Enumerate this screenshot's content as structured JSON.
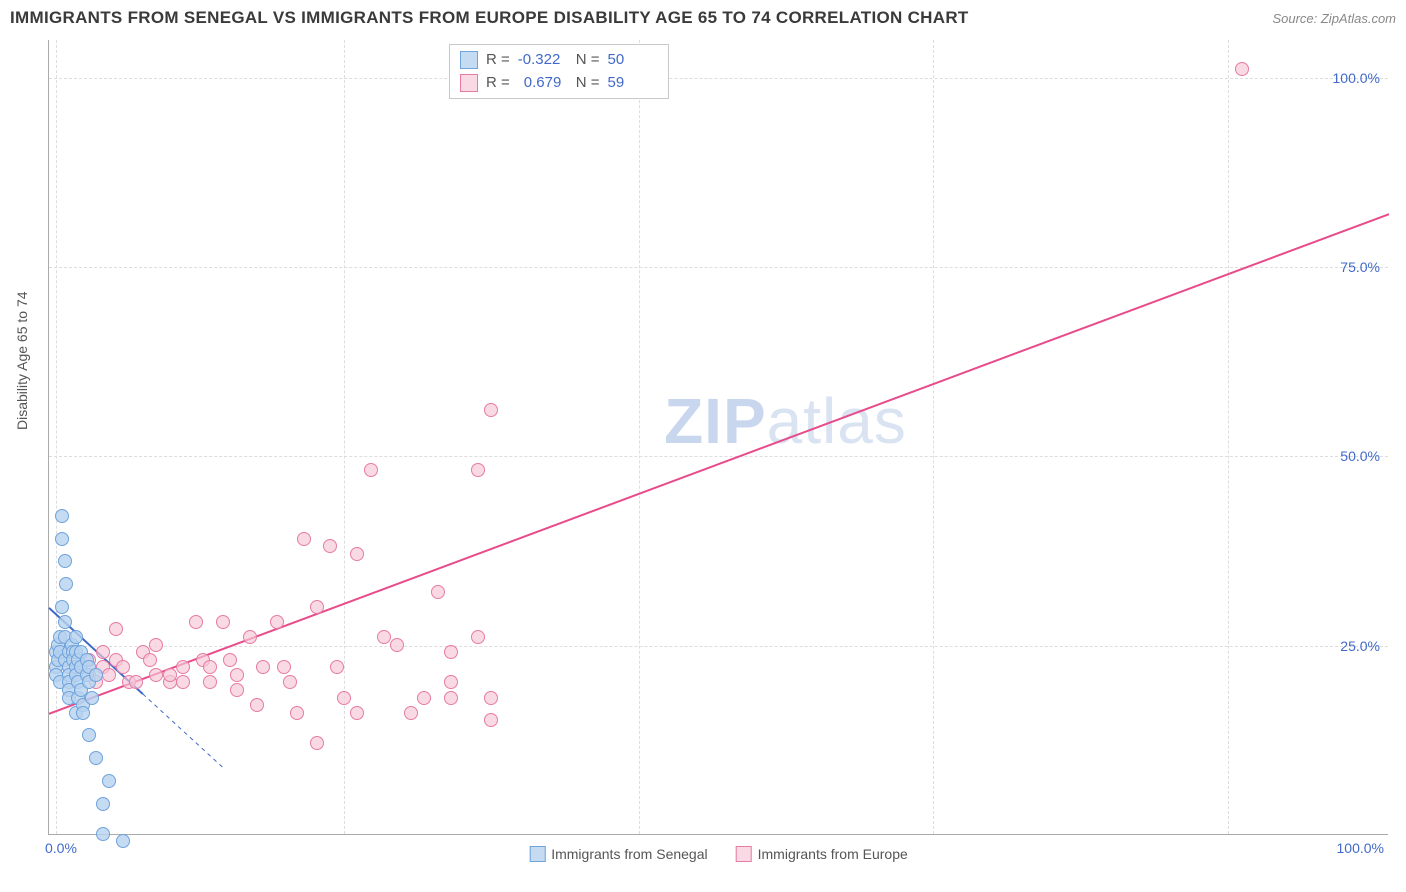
{
  "title": "IMMIGRANTS FROM SENEGAL VS IMMIGRANTS FROM EUROPE DISABILITY AGE 65 TO 74 CORRELATION CHART",
  "source": "Source: ZipAtlas.com",
  "y_axis_title": "Disability Age 65 to 74",
  "watermark_a": "ZIP",
  "watermark_b": "atlas",
  "chart": {
    "type": "scatter",
    "xlim": [
      0,
      100
    ],
    "ylim": [
      0,
      105
    ],
    "x_ticks": [
      0,
      100
    ],
    "x_tick_labels": [
      "0.0%",
      "100.0%"
    ],
    "y_ticks": [
      25,
      50,
      75,
      100
    ],
    "y_tick_labels": [
      "25.0%",
      "50.0%",
      "75.0%",
      "100.0%"
    ],
    "grid_color": "#dddddd",
    "background_color": "#ffffff",
    "axis_color": "#aaaaaa",
    "tick_label_color": "#4169c9",
    "axis_title_color": "#555555",
    "v_grid_positions_pct": [
      0.5,
      22,
      44,
      66,
      88
    ]
  },
  "series": {
    "senegal": {
      "label": "Immigrants from Senegal",
      "fill_color": "#b7d2efcc",
      "stroke_color": "#6ea3dc",
      "R": "-0.322",
      "N": "50",
      "trend": {
        "x1": 0,
        "y1": 30,
        "x2": 8,
        "y2": 17,
        "solid_until_x": 7,
        "color": "#4169c9",
        "width": 2
      },
      "points": [
        [
          0.5,
          26
        ],
        [
          0.5,
          24
        ],
        [
          0.5,
          23
        ],
        [
          0.7,
          25
        ],
        [
          0.7,
          27
        ],
        [
          0.8,
          28
        ],
        [
          0.8,
          26
        ],
        [
          0.8,
          22
        ],
        [
          1.0,
          44
        ],
        [
          1.0,
          41
        ],
        [
          1.2,
          38
        ],
        [
          1.2,
          30
        ],
        [
          1.2,
          28
        ],
        [
          1.2,
          25
        ],
        [
          1.3,
          35
        ],
        [
          1.5,
          26
        ],
        [
          1.5,
          24
        ],
        [
          1.5,
          23
        ],
        [
          1.5,
          22
        ],
        [
          1.5,
          21
        ],
        [
          1.5,
          20
        ],
        [
          1.7,
          27
        ],
        [
          1.8,
          26
        ],
        [
          1.8,
          25
        ],
        [
          2.0,
          28
        ],
        [
          2.0,
          26
        ],
        [
          2.0,
          24
        ],
        [
          2.0,
          23
        ],
        [
          2.0,
          18
        ],
        [
          2.2,
          25
        ],
        [
          2.2,
          22
        ],
        [
          2.2,
          20
        ],
        [
          2.4,
          26
        ],
        [
          2.4,
          24
        ],
        [
          2.4,
          21
        ],
        [
          2.5,
          19
        ],
        [
          2.5,
          18
        ],
        [
          2.8,
          25
        ],
        [
          2.8,
          23
        ],
        [
          3.0,
          24
        ],
        [
          3.0,
          22
        ],
        [
          3.0,
          15
        ],
        [
          3.2,
          20
        ],
        [
          3.5,
          23
        ],
        [
          3.5,
          12
        ],
        [
          4.0,
          6
        ],
        [
          4.0,
          2
        ],
        [
          4.5,
          9
        ],
        [
          5.5,
          1
        ],
        [
          1.0,
          32
        ]
      ]
    },
    "europe": {
      "label": "Immigrants from Europe",
      "fill_color": "#f6c7d6aa",
      "stroke_color": "#e77ba3",
      "R": "0.679",
      "N": "59",
      "trend": {
        "x1": 0,
        "y1": 16,
        "x2": 100,
        "y2": 82,
        "color": "#e84b8a",
        "width": 2
      },
      "points": [
        [
          2,
          24
        ],
        [
          2,
          26
        ],
        [
          3,
          25
        ],
        [
          3,
          23
        ],
        [
          3.5,
          22
        ],
        [
          4,
          26
        ],
        [
          4,
          24
        ],
        [
          4.5,
          23
        ],
        [
          5,
          29
        ],
        [
          5,
          25
        ],
        [
          5.5,
          24
        ],
        [
          6,
          22
        ],
        [
          6.5,
          22
        ],
        [
          7,
          26
        ],
        [
          7.5,
          25
        ],
        [
          8,
          27
        ],
        [
          8,
          23
        ],
        [
          9,
          22
        ],
        [
          9,
          23
        ],
        [
          10,
          24
        ],
        [
          10,
          22
        ],
        [
          11,
          30
        ],
        [
          11.5,
          25
        ],
        [
          12,
          24
        ],
        [
          12,
          22
        ],
        [
          13,
          30
        ],
        [
          13.5,
          25
        ],
        [
          14,
          23
        ],
        [
          14,
          21
        ],
        [
          15,
          28
        ],
        [
          15.5,
          19
        ],
        [
          16,
          24
        ],
        [
          17,
          30
        ],
        [
          17.5,
          24
        ],
        [
          18,
          22
        ],
        [
          18.5,
          18
        ],
        [
          19,
          41
        ],
        [
          20,
          32
        ],
        [
          20,
          14
        ],
        [
          21,
          40
        ],
        [
          21.5,
          24
        ],
        [
          22,
          20
        ],
        [
          23,
          39
        ],
        [
          23,
          18
        ],
        [
          24,
          50
        ],
        [
          25,
          28
        ],
        [
          26,
          27
        ],
        [
          27,
          18
        ],
        [
          28,
          20
        ],
        [
          29,
          34
        ],
        [
          30,
          22
        ],
        [
          30,
          20
        ],
        [
          32,
          50
        ],
        [
          32,
          28
        ],
        [
          33,
          58
        ],
        [
          33,
          20
        ],
        [
          33,
          17
        ],
        [
          89,
          103
        ],
        [
          30,
          26
        ]
      ]
    }
  },
  "stats_box": {
    "label_R": "R =",
    "label_N": "N ="
  },
  "legend_bottom": {
    "items": [
      "senegal",
      "europe"
    ]
  }
}
